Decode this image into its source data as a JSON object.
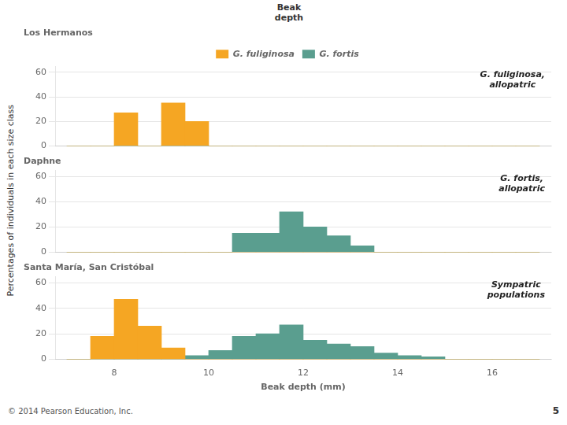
{
  "chart_data": [
    {
      "type": "histogram",
      "title": "Los Hermanos",
      "annotations": [
        "G. fuliginosa,\nallopatric",
        "Beak\ndepth"
      ],
      "bins": [
        7.0,
        7.5,
        8.0,
        8.5,
        9.0,
        9.5,
        10.0,
        10.5,
        11.0,
        11.5,
        12.0,
        12.5,
        13.0,
        13.5,
        14.0,
        14.5,
        15.0,
        15.5,
        16.0,
        16.5,
        17.0
      ],
      "series": [
        {
          "name": "G. fuliginosa",
          "color": "#F5A623",
          "values": [
            0,
            0,
            27,
            0,
            35,
            20,
            0,
            0,
            0,
            0,
            0,
            0,
            0,
            0,
            0,
            0,
            0,
            0,
            0,
            0
          ]
        },
        {
          "name": "G. fortis",
          "color": "#5A9E8F",
          "values": [
            0,
            0,
            0,
            0,
            0,
            0,
            0,
            0,
            0,
            0,
            0,
            0,
            0,
            0,
            0,
            0,
            0,
            0,
            0,
            0
          ]
        }
      ],
      "xlim": [
        6.75,
        17.25
      ],
      "xticks": [
        8,
        10,
        12,
        14,
        16
      ],
      "ylim": [
        0,
        65
      ],
      "yticks": [
        0,
        20,
        40,
        60
      ],
      "grid": "y",
      "legend": "top",
      "tick_labels": "y"
    },
    {
      "type": "histogram",
      "title": "Daphne",
      "ylabel": "Percentages of individuals in each size class",
      "annotations": [
        "G. fortis,\nallopatric"
      ],
      "bins": [
        7.0,
        7.5,
        8.0,
        8.5,
        9.0,
        9.5,
        10.0,
        10.5,
        11.0,
        11.5,
        12.0,
        12.5,
        13.0,
        13.5,
        14.0,
        14.5,
        15.0,
        15.5,
        16.0,
        16.5,
        17.0
      ],
      "series": [
        {
          "name": "G. fuliginosa",
          "color": "#F5A623",
          "values": [
            0,
            0,
            0,
            0,
            0,
            0,
            0,
            0,
            0,
            0,
            0,
            0,
            0,
            0,
            0,
            0,
            0,
            0,
            0,
            0
          ]
        },
        {
          "name": "G. fortis",
          "color": "#5A9E8F",
          "values": [
            0,
            0,
            0,
            0,
            0,
            0,
            0,
            15,
            15,
            32,
            20,
            13,
            5,
            0,
            0,
            0,
            0,
            0,
            0,
            0
          ]
        }
      ],
      "xlim": [
        6.75,
        17.25
      ],
      "xticks": [
        8,
        10,
        12,
        14,
        16
      ],
      "ylim": [
        0,
        65
      ],
      "yticks": [
        0,
        20,
        40,
        60
      ],
      "grid": "y",
      "tick_labels": "y"
    },
    {
      "type": "histogram",
      "title": "Santa María, San Cristóbal",
      "xlabel": "Beak depth (mm)",
      "annotations": [
        "Sympatric\npopulations",
        "© 2014 Pearson Education, Inc.",
        "5"
      ],
      "bins": [
        7.0,
        7.5,
        8.0,
        8.5,
        9.0,
        9.5,
        10.0,
        10.5,
        11.0,
        11.5,
        12.0,
        12.5,
        13.0,
        13.5,
        14.0,
        14.5,
        15.0,
        15.5,
        16.0,
        16.5,
        17.0
      ],
      "series": [
        {
          "name": "G. fuliginosa",
          "color": "#F5A623",
          "values": [
            0,
            18,
            47,
            26,
            9,
            0,
            0,
            0,
            0,
            0,
            0,
            0,
            0,
            0,
            0,
            0,
            0,
            0,
            0,
            0
          ]
        },
        {
          "name": "G. fortis",
          "color": "#5A9E8F",
          "values": [
            0,
            0,
            0,
            0,
            0,
            3,
            7,
            18,
            20,
            27,
            15,
            12,
            10,
            5,
            3,
            2,
            0,
            0,
            0,
            0
          ]
        }
      ],
      "xlim": [
        6.75,
        17.25
      ],
      "xticks": [
        8,
        10,
        12,
        14,
        16
      ],
      "ylim": [
        0,
        65
      ],
      "yticks": [
        0,
        20,
        40,
        60
      ],
      "grid": "y"
    }
  ]
}
